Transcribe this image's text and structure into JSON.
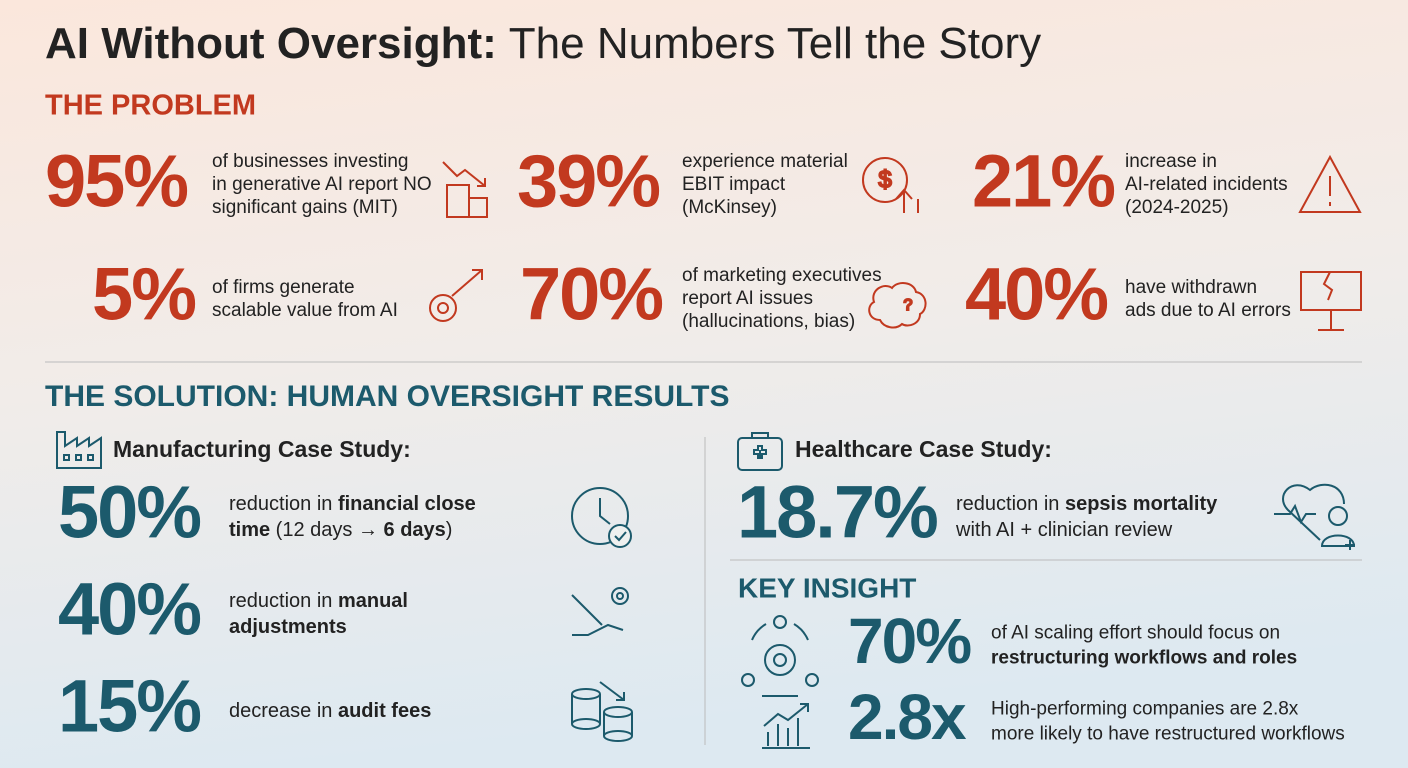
{
  "title": {
    "bold": "AI Without Oversight:",
    "regular": "The Numbers Tell the Story"
  },
  "problem": {
    "heading": "THE PROBLEM",
    "stats": [
      {
        "value": "95%",
        "lines": [
          "of businesses investing",
          "in generative AI report NO",
          "significant gains (MIT)"
        ]
      },
      {
        "value": "39%",
        "lines": [
          "experience material",
          "EBIT impact",
          "(McKinsey)"
        ]
      },
      {
        "value": "21%",
        "lines": [
          "increase in",
          "AI-related incidents",
          "(2024-2025)"
        ]
      },
      {
        "value": "5%",
        "lines": [
          "of firms generate",
          "scalable value from AI"
        ]
      },
      {
        "value": "70%",
        "lines": [
          "of marketing executives",
          "report AI issues",
          "(hallucinations, bias)"
        ]
      },
      {
        "value": "40%",
        "lines": [
          "have withdrawn",
          "ads due to AI errors"
        ]
      }
    ]
  },
  "solution": {
    "heading": "THE SOLUTION: HUMAN OVERSIGHT RESULTS",
    "manufacturing": {
      "label": "Manufacturing Case Study:",
      "stats": [
        {
          "value": "50%",
          "lines": [
            [
              {
                "text": "reduction in "
              },
              {
                "text": "financial close",
                "bold": true
              }
            ],
            [
              {
                "text": "time",
                "bold": true
              },
              {
                "text": " (12 days → "
              },
              {
                "text": "6 days",
                "bold": true
              },
              {
                "text": ")"
              }
            ]
          ]
        },
        {
          "value": "40%",
          "lines": [
            [
              {
                "text": "reduction in "
              },
              {
                "text": "manual",
                "bold": true
              }
            ],
            [
              {
                "text": "adjustments",
                "bold": true
              }
            ]
          ]
        },
        {
          "value": "15%",
          "lines": [
            [
              {
                "text": "decrease in "
              },
              {
                "text": "audit fees",
                "bold": true
              }
            ]
          ]
        }
      ]
    },
    "healthcare": {
      "label": "Healthcare Case Study:",
      "stats": [
        {
          "value": "18.7%",
          "lines": [
            [
              {
                "text": "reduction in "
              },
              {
                "text": "sepsis mortality",
                "bold": true
              }
            ],
            [
              {
                "text": "with AI + clinician review"
              }
            ]
          ]
        }
      ]
    },
    "key_insight": {
      "heading": "KEY INSIGHT",
      "stats": [
        {
          "value": "70%",
          "lines": [
            [
              {
                "text": "of AI scaling effort should focus on"
              }
            ],
            [
              {
                "text": "restructuring workflows and roles",
                "bold": true
              }
            ]
          ]
        },
        {
          "value": "2.8x",
          "lines": [
            [
              {
                "text": "High-performing companies are 2.8x"
              }
            ],
            [
              {
                "text": "more likely to have restructured workflows"
              }
            ]
          ]
        }
      ]
    }
  }
}
